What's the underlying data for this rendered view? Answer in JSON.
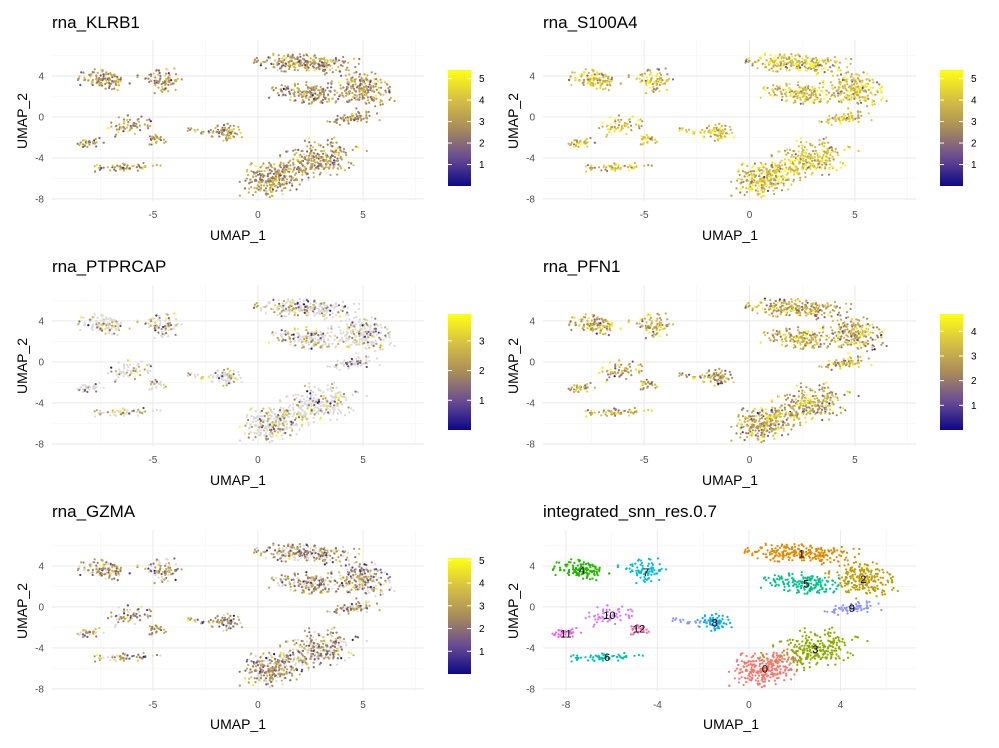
{
  "figure": {
    "gradient": [
      "#0d0887",
      "#6a4c93",
      "#a98c5a",
      "#d7c144",
      "#ffff14"
    ],
    "zero_color": "#d9d9d9"
  },
  "chart_data": [
    {
      "type": "scatter",
      "title": "rna_KLRB1",
      "xlabel": "UMAP_1",
      "ylabel": "UMAP_2",
      "xlim": [
        -9.8,
        7.9
      ],
      "ylim": [
        -8.2,
        7.5
      ],
      "x_ticks": [
        -5,
        0,
        5
      ],
      "y_ticks": [
        -8,
        -4,
        0,
        4
      ],
      "x_tick_labels": [
        "-5",
        "0",
        "5"
      ],
      "y_tick_labels": [
        "-8",
        "-4",
        "0",
        "4"
      ],
      "colorbar": {
        "range": [
          0,
          5.4
        ],
        "ticks": [
          1,
          2,
          3,
          4,
          5
        ],
        "tick_labels": [
          "1",
          "2",
          "3",
          "4",
          "5"
        ]
      },
      "expression": {
        "zero_fraction": 0.02,
        "mean": 3.0
      }
    },
    {
      "type": "scatter",
      "title": "rna_S100A4",
      "xlabel": "UMAP_1",
      "ylabel": "UMAP_2",
      "xlim": [
        -9.8,
        7.9
      ],
      "ylim": [
        -8.2,
        7.5
      ],
      "x_ticks": [
        -5,
        0,
        5
      ],
      "y_ticks": [
        -8,
        -4,
        0,
        4
      ],
      "x_tick_labels": [
        "-5",
        "0",
        "5"
      ],
      "y_tick_labels": [
        "-8",
        "-4",
        "0",
        "4"
      ],
      "colorbar": {
        "range": [
          0,
          5.4
        ],
        "ticks": [
          1,
          2,
          3,
          4,
          5
        ],
        "tick_labels": [
          "1",
          "2",
          "3",
          "4",
          "5"
        ]
      },
      "expression": {
        "zero_fraction": 0.0,
        "mean": 4.0
      }
    },
    {
      "type": "scatter",
      "title": "rna_PTPRCAP",
      "xlabel": "UMAP_1",
      "ylabel": "UMAP_2",
      "xlim": [
        -9.8,
        7.9
      ],
      "ylim": [
        -8.2,
        7.5
      ],
      "x_ticks": [
        -5,
        0,
        5
      ],
      "y_ticks": [
        -8,
        -4,
        0,
        4
      ],
      "x_tick_labels": [
        "-5",
        "0",
        "5"
      ],
      "y_tick_labels": [
        "-8",
        "-4",
        "0",
        "4"
      ],
      "colorbar": {
        "range": [
          0,
          3.9
        ],
        "ticks": [
          1,
          2,
          3
        ],
        "tick_labels": [
          "1",
          "2",
          "3"
        ]
      },
      "expression": {
        "zero_fraction": 0.7,
        "mean": 2.2
      }
    },
    {
      "type": "scatter",
      "title": "rna_PFN1",
      "xlabel": "UMAP_1",
      "ylabel": "UMAP_2",
      "xlim": [
        -9.8,
        7.9
      ],
      "ylim": [
        -8.2,
        7.5
      ],
      "x_ticks": [
        -5,
        0,
        5
      ],
      "y_ticks": [
        -8,
        -4,
        0,
        4
      ],
      "x_tick_labels": [
        "-5",
        "0",
        "5"
      ],
      "y_tick_labels": [
        "-8",
        "-4",
        "0",
        "4"
      ],
      "colorbar": {
        "range": [
          0,
          4.7
        ],
        "ticks": [
          1,
          2,
          3,
          4
        ],
        "tick_labels": [
          "1",
          "2",
          "3",
          "4"
        ]
      },
      "expression": {
        "zero_fraction": 0.0,
        "mean": 3.0
      }
    },
    {
      "type": "scatter",
      "title": "rna_GZMA",
      "xlabel": "UMAP_1",
      "ylabel": "UMAP_2",
      "xlim": [
        -9.8,
        7.9
      ],
      "ylim": [
        -8.2,
        7.5
      ],
      "x_ticks": [
        -5,
        0,
        5
      ],
      "y_ticks": [
        -8,
        -4,
        0,
        4
      ],
      "x_tick_labels": [
        "-5",
        "0",
        "5"
      ],
      "y_tick_labels": [
        "-8",
        "-4",
        "0",
        "4"
      ],
      "colorbar": {
        "range": [
          0,
          5.1
        ],
        "ticks": [
          1,
          2,
          3,
          4,
          5
        ],
        "tick_labels": [
          "1",
          "2",
          "3",
          "4",
          "5"
        ]
      },
      "expression": {
        "zero_fraction": 0.3,
        "mean": 2.6
      }
    },
    {
      "type": "scatter",
      "title": "integrated_snn_res.0.7",
      "xlabel": "UMAP_1",
      "ylabel": "UMAP_2",
      "xlim": [
        -9.0,
        7.3
      ],
      "ylim": [
        -8.2,
        7.5
      ],
      "x_ticks": [
        -8,
        -4,
        0,
        4
      ],
      "y_ticks": [
        -8,
        -4,
        0,
        4
      ],
      "x_tick_labels": [
        "-8",
        "-4",
        "0",
        "4"
      ],
      "y_tick_labels": [
        "-8",
        "-4",
        "0",
        "4"
      ],
      "clusters": [
        {
          "label": "0",
          "x": 0.7,
          "y": -6.0,
          "color": "#f8766d"
        },
        {
          "label": "1",
          "x": 2.3,
          "y": 5.2,
          "color": "#e18a00"
        },
        {
          "label": "2",
          "x": 5.0,
          "y": 2.7,
          "color": "#be9c00"
        },
        {
          "label": "3",
          "x": 2.9,
          "y": -4.1,
          "color": "#8cab00"
        },
        {
          "label": "4",
          "x": -7.3,
          "y": 3.6,
          "color": "#24b700"
        },
        {
          "label": "5",
          "x": 2.5,
          "y": 2.3,
          "color": "#00c08b"
        },
        {
          "label": "6",
          "x": -6.2,
          "y": -4.9,
          "color": "#00c1ab"
        },
        {
          "label": "7",
          "x": -4.5,
          "y": 3.4,
          "color": "#00bbda"
        },
        {
          "label": "8",
          "x": -1.5,
          "y": -1.5,
          "color": "#00acfc"
        },
        {
          "label": "9",
          "x": 4.5,
          "y": -0.1,
          "color": "#8b93ff"
        },
        {
          "label": "10",
          "x": -6.1,
          "y": -0.8,
          "color": "#d575fe"
        },
        {
          "label": "11",
          "x": -8.0,
          "y": -2.6,
          "color": "#f962dd"
        },
        {
          "label": "12",
          "x": -4.8,
          "y": -2.1,
          "color": "#ff65ac"
        }
      ]
    }
  ]
}
